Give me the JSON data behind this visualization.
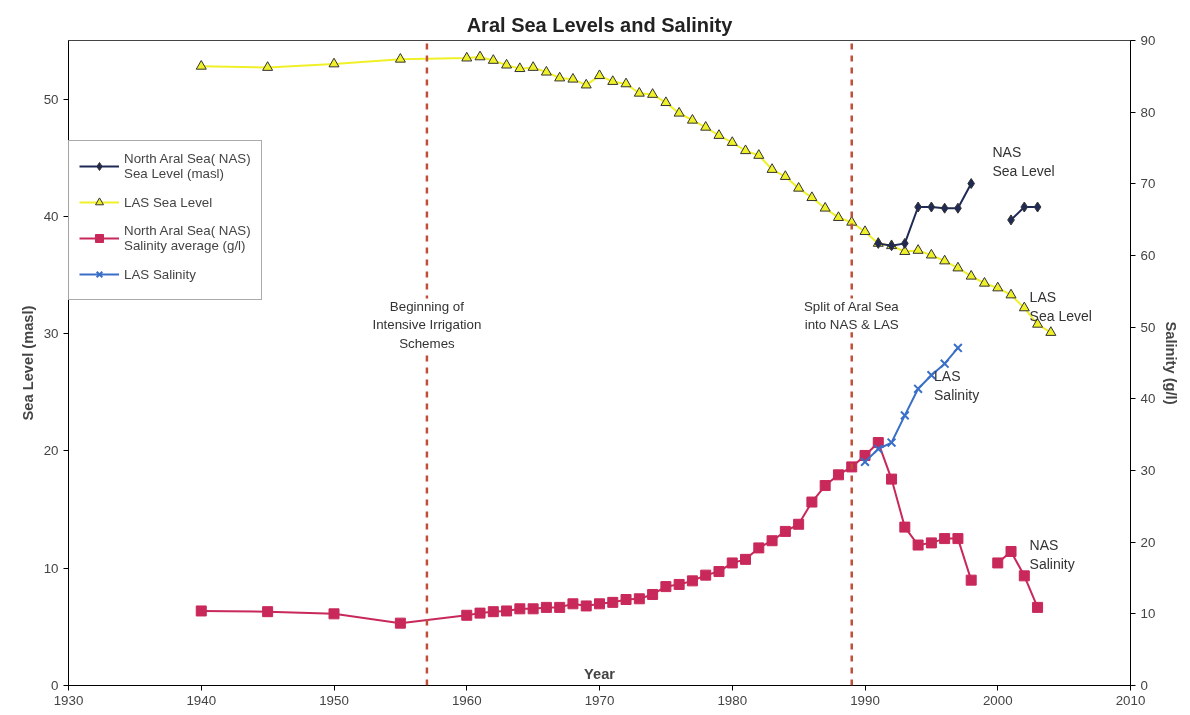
{
  "chart_data": {
    "type": "line",
    "title": "Aral Sea Levels and Salinity",
    "xlabel": "Year",
    "ylabel": "Sea Level (masl)",
    "y2label": "Salinity (g/l)",
    "xlim": [
      1930,
      2010
    ],
    "xticks": [
      1930,
      1940,
      1950,
      1960,
      1970,
      1980,
      1990,
      2000,
      2010
    ],
    "ylim": [
      0,
      55
    ],
    "yticks": [
      0,
      10,
      20,
      30,
      40,
      50
    ],
    "y2lim": [
      0,
      90
    ],
    "y2ticks": [
      0,
      10,
      20,
      30,
      40,
      50,
      60,
      70,
      80,
      90
    ],
    "grid": false,
    "legend": "top left",
    "line_style": "solid",
    "series": [
      {
        "name": "North Aral Sea( NAS)\nSea Level (masl)",
        "color": "#1f2a55",
        "marker": "diamond",
        "x": [
          1991,
          1992,
          1993,
          1994,
          1995,
          1996,
          1997,
          1998,
          1999,
          2000,
          2001,
          2002,
          2003
        ],
        "values": [
          37.7,
          37.5,
          37.7,
          40.8,
          40.8,
          40.7,
          40.7,
          42.8,
          null,
          null,
          39.7,
          40.8,
          40.8
        ]
      },
      {
        "name": "LAS Sea Level",
        "color": "#f0f028",
        "marker": "triangle",
        "x": [
          1940,
          1945,
          1950,
          1955,
          1960,
          1961,
          1962,
          1963,
          1964,
          1965,
          1966,
          1967,
          1968,
          1969,
          1970,
          1971,
          1972,
          1973,
          1974,
          1975,
          1976,
          1977,
          1978,
          1979,
          1980,
          1981,
          1982,
          1983,
          1984,
          1985,
          1986,
          1987,
          1988,
          1989,
          1990,
          1991,
          1992,
          1993,
          1994,
          1995,
          1996,
          1997,
          1998,
          1999,
          2000,
          2001,
          2002,
          2003,
          2004
        ],
        "values": [
          52.8,
          52.7,
          53.0,
          53.4,
          53.5,
          53.6,
          53.3,
          52.9,
          52.6,
          52.7,
          52.3,
          51.8,
          51.7,
          51.2,
          52.0,
          51.5,
          51.3,
          50.5,
          50.4,
          49.7,
          48.8,
          48.2,
          47.6,
          46.9,
          46.3,
          45.6,
          45.2,
          44.0,
          43.4,
          42.4,
          41.6,
          40.7,
          39.9,
          39.5,
          38.7,
          37.7,
          37.5,
          37.0,
          37.1,
          36.7,
          36.2,
          35.6,
          34.9,
          34.3,
          33.9,
          33.3,
          32.2,
          30.8,
          30.1
        ]
      },
      {
        "name": "North Aral Sea( NAS)\nSalinity average (g/l)",
        "color": "#c8285a",
        "marker": "square",
        "axis": "y2",
        "x": [
          1940,
          1945,
          1950,
          1955,
          1960,
          1961,
          1962,
          1963,
          1964,
          1965,
          1966,
          1967,
          1968,
          1969,
          1970,
          1971,
          1972,
          1973,
          1974,
          1975,
          1976,
          1977,
          1978,
          1979,
          1980,
          1981,
          1982,
          1983,
          1984,
          1985,
          1986,
          1987,
          1988,
          1989,
          1990,
          1991,
          1992,
          1993,
          1994,
          1995,
          1996,
          1997,
          1998,
          1999,
          2000,
          2001,
          2002,
          2003
        ],
        "values": [
          10.4,
          10.3,
          10.0,
          8.7,
          9.8,
          10.1,
          10.3,
          10.4,
          10.7,
          10.7,
          10.9,
          10.9,
          11.4,
          11.1,
          11.4,
          11.6,
          12.0,
          12.1,
          12.7,
          13.8,
          14.1,
          14.6,
          15.4,
          15.9,
          17.1,
          17.6,
          19.2,
          20.2,
          21.5,
          22.5,
          25.6,
          27.9,
          29.4,
          30.5,
          32.1,
          33.9,
          28.8,
          22.1,
          19.6,
          19.9,
          20.5,
          20.5,
          14.7,
          null,
          17.1,
          18.7,
          15.3,
          10.9
        ]
      },
      {
        "name": "LAS Salinity",
        "color": "#3a6fc8",
        "marker": "cross",
        "axis": "y2",
        "x": [
          1990,
          1991,
          1992,
          1993,
          1994,
          1995,
          1996,
          1997
        ],
        "values": [
          31.2,
          33.0,
          33.9,
          37.7,
          41.4,
          43.3,
          44.9,
          47.1
        ]
      }
    ],
    "ref_lines": [
      {
        "axis": "x",
        "value": 1957,
        "label": "Beginning of\nIntensive Irrigation\nSchemes",
        "color": "#c0503a",
        "line_style": "dashed"
      },
      {
        "axis": "x",
        "value": 1989,
        "label": "Split of Aral Sea\ninto NAS & LAS",
        "color": "#c0503a",
        "line_style": "dashed"
      }
    ],
    "annotations": [
      "NAS\nSea Level",
      "LAS\nSea Level",
      {
        "text": "LAS\nSalinity",
        "x": 1995.2,
        "y": 27.1
      },
      "NAS\nSalinity"
    ]
  }
}
